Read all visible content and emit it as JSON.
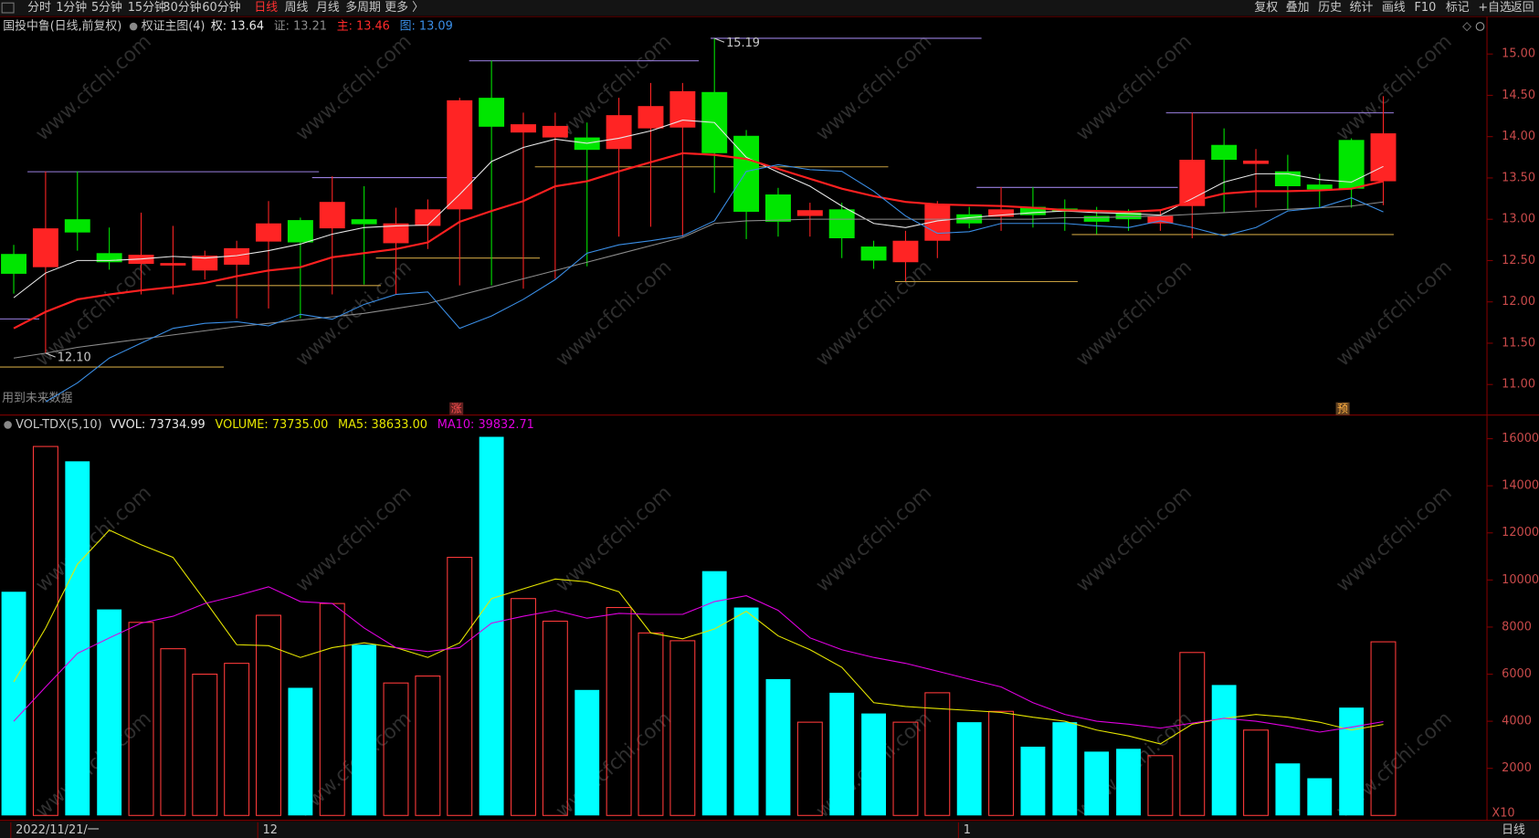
{
  "toolbar": {
    "left": [
      "分时",
      "1分钟",
      "5分钟",
      "15分钟",
      "30分钟",
      "60分钟",
      "日线",
      "周线",
      "月线",
      "多周期",
      "更多 〉"
    ],
    "right": [
      "复权",
      "叠加",
      "历史",
      "统计",
      "画线",
      "F10",
      "标记",
      "+自选",
      "返回"
    ]
  },
  "watermark": "www.cfchi.com",
  "status": {
    "future_data": "用到未来数据",
    "marker_rise": "涨",
    "marker_pre": "预",
    "period": "日线"
  },
  "chart_data": [
    {
      "type": "candlestick",
      "title": "国投中鲁(日线,前复权)",
      "indicator": "权证主图(4)",
      "header": [
        {
          "text": "权: 13.64",
          "color": "#e8e8e8"
        },
        {
          "text": "证: 13.21",
          "color": "#8c8c8c"
        },
        {
          "text": "主: 13.46",
          "color": "#ff2a2a"
        },
        {
          "text": "图: 13.09",
          "color": "#3a8ee6"
        }
      ],
      "categories": [
        "2022/11/21/一",
        null,
        null,
        null,
        null,
        null,
        null,
        null,
        "12",
        null,
        null,
        null,
        null,
        null,
        null,
        null,
        null,
        null,
        null,
        null,
        null,
        null,
        null,
        null,
        null,
        null,
        null,
        null,
        null,
        null,
        "1",
        null,
        null,
        null,
        null,
        null,
        null,
        null,
        null,
        null,
        null,
        null,
        null,
        null
      ],
      "open": [
        12.58,
        12.42,
        13.0,
        12.59,
        12.46,
        12.44,
        12.38,
        12.45,
        12.73,
        12.99,
        12.89,
        13.0,
        12.71,
        12.92,
        13.12,
        14.47,
        14.05,
        13.99,
        13.99,
        13.85,
        14.1,
        14.11,
        14.54,
        14.01,
        13.3,
        13.04,
        13.12,
        12.67,
        12.48,
        12.74,
        13.06,
        13.03,
        13.15,
        13.13,
        13.04,
        13.08,
        12.95,
        13.16,
        13.9,
        13.67,
        13.58,
        13.42,
        13.96,
        13.46
      ],
      "high": [
        12.69,
        13.58,
        13.58,
        12.9,
        13.08,
        12.92,
        12.62,
        12.74,
        13.22,
        13.02,
        13.52,
        13.4,
        13.14,
        13.24,
        14.47,
        14.92,
        14.29,
        14.29,
        14.17,
        14.47,
        14.65,
        14.65,
        15.19,
        14.08,
        13.38,
        13.2,
        13.2,
        12.74,
        12.86,
        13.22,
        13.15,
        13.39,
        13.39,
        13.24,
        13.15,
        13.12,
        13.12,
        14.29,
        14.1,
        13.85,
        13.78,
        13.55,
        13.98,
        14.49
      ],
      "low": [
        12.1,
        11.38,
        12.62,
        12.39,
        12.09,
        12.09,
        12.27,
        11.8,
        11.92,
        11.8,
        12.09,
        12.21,
        12.09,
        12.64,
        12.2,
        12.2,
        12.16,
        12.28,
        12.43,
        12.79,
        12.91,
        12.79,
        13.32,
        12.76,
        12.79,
        12.79,
        12.53,
        12.4,
        12.25,
        12.53,
        12.89,
        12.86,
        12.9,
        12.86,
        12.82,
        12.86,
        12.86,
        12.77,
        13.08,
        13.14,
        13.11,
        13.14,
        13.14,
        13.17
      ],
      "close": [
        12.34,
        12.89,
        12.84,
        12.48,
        12.57,
        12.47,
        12.56,
        12.65,
        12.95,
        12.72,
        13.21,
        12.94,
        12.95,
        13.12,
        14.44,
        14.12,
        14.15,
        14.13,
        13.84,
        14.26,
        14.37,
        14.55,
        13.8,
        13.09,
        12.97,
        13.11,
        12.77,
        12.5,
        12.74,
        13.18,
        12.95,
        13.12,
        13.05,
        13.09,
        12.97,
        13.0,
        13.04,
        13.72,
        13.72,
        13.71,
        13.4,
        13.36,
        13.37,
        14.04
      ],
      "up_color": "#ff2424",
      "down_color": "#00e600",
      "annotations": [
        {
          "text": "15.19",
          "at": "high"
        },
        {
          "text": "12.10",
          "at": "low"
        }
      ],
      "series": [
        {
          "color": "#e8e8e8",
          "values": [
            12.05,
            12.35,
            12.5,
            12.5,
            12.52,
            12.55,
            12.53,
            12.56,
            12.62,
            12.7,
            12.82,
            12.9,
            12.92,
            12.93,
            13.3,
            13.7,
            13.87,
            13.97,
            13.92,
            13.98,
            14.07,
            14.2,
            14.17,
            13.75,
            13.57,
            13.4,
            13.16,
            12.95,
            12.9,
            12.98,
            13.02,
            13.05,
            13.08,
            13.1,
            13.08,
            13.07,
            13.05,
            13.25,
            13.45,
            13.55,
            13.55,
            13.48,
            13.45,
            13.64
          ]
        },
        {
          "color": "#8c8c8c",
          "values": [
            11.32,
            11.38,
            11.45,
            11.5,
            11.55,
            11.6,
            11.65,
            11.7,
            11.74,
            11.78,
            11.82,
            11.86,
            11.92,
            11.98,
            12.08,
            12.18,
            12.28,
            12.38,
            12.48,
            12.58,
            12.68,
            12.78,
            12.95,
            12.98,
            12.99,
            13.0,
            13.0,
            13.0,
            13.0,
            13.0,
            13.0,
            13.0,
            13.0,
            13.02,
            13.02,
            13.03,
            13.04,
            13.06,
            13.08,
            13.1,
            13.12,
            13.14,
            13.16,
            13.21
          ]
        },
        {
          "color": "#ff2020",
          "values": [
            11.68,
            11.88,
            12.03,
            12.09,
            12.14,
            12.18,
            12.23,
            12.31,
            12.38,
            12.42,
            12.54,
            12.59,
            12.64,
            12.72,
            12.97,
            13.1,
            13.22,
            13.4,
            13.46,
            13.58,
            13.69,
            13.8,
            13.78,
            13.73,
            13.61,
            13.49,
            13.37,
            13.28,
            13.21,
            13.18,
            13.17,
            13.16,
            13.14,
            13.11,
            13.1,
            13.09,
            13.11,
            13.22,
            13.31,
            13.34,
            13.34,
            13.35,
            13.37,
            13.46
          ]
        },
        {
          "color": "#3a8ee6",
          "values": [
            null,
            10.79,
            11.02,
            11.32,
            11.5,
            11.68,
            11.74,
            11.76,
            11.71,
            11.85,
            11.79,
            11.97,
            12.09,
            12.12,
            11.68,
            11.83,
            12.03,
            12.27,
            12.59,
            12.69,
            12.74,
            12.8,
            12.98,
            13.58,
            13.66,
            13.6,
            13.58,
            13.34,
            13.04,
            12.83,
            12.85,
            12.95,
            12.95,
            12.95,
            12.92,
            12.9,
            12.98,
            12.9,
            12.8,
            12.9,
            13.1,
            13.14,
            13.26,
            13.09
          ]
        }
      ],
      "ylim": [
        10.63,
        15.44
      ],
      "yticks": [
        {
          "value": 11,
          "label": "11.00"
        },
        {
          "value": 11.5,
          "label": "11.50"
        },
        {
          "value": 12,
          "label": "12.00"
        },
        {
          "value": 12.5,
          "label": "12.50"
        },
        {
          "value": 13,
          "label": "13.00"
        },
        {
          "value": 13.5,
          "label": "13.50"
        },
        {
          "value": 14,
          "label": "14.00"
        },
        {
          "value": 14.5,
          "label": "14.50"
        },
        {
          "value": 15,
          "label": "15.00"
        }
      ]
    },
    {
      "type": "bar",
      "title": "VOL-TDX(5,10)",
      "header": [
        {
          "text": "VVOL: 73734.99",
          "color": "#e8e8e8"
        },
        {
          "text": "VOLUME: 73735.00",
          "color": "#e6e600"
        },
        {
          "text": "MA5: 38633.00",
          "color": "#e6e600"
        },
        {
          "text": "MA10: 39832.71",
          "color": "#e000e0"
        }
      ],
      "values": [
        9500,
        15670,
        15040,
        8750,
        8200,
        7080,
        6000,
        6460,
        8500,
        5420,
        9000,
        7250,
        5625,
        5920,
        10960,
        16080,
        9210,
        8250,
        5330,
        8830,
        7750,
        7420,
        10375,
        8830,
        5790,
        3960,
        5210,
        4330,
        3960,
        5210,
        3960,
        4420,
        2920,
        3960,
        2710,
        2830,
        2540,
        6920,
        5540,
        3625,
        2210,
        1580,
        4580,
        7373.5
      ],
      "up_color": "#ff3a3a",
      "down_color": "#00ffff",
      "series": [
        {
          "color": "#e6e600",
          "values": [
            5670,
            7960,
            10670,
            12120,
            11500,
            10960,
            9125,
            7250,
            7210,
            6710,
            7125,
            7330,
            7125,
            6710,
            7330,
            9210,
            9625,
            10040,
            9920,
            9500,
            7750,
            7500,
            7920,
            8670,
            7625,
            7040,
            6290,
            4790,
            4625,
            4540,
            4460,
            4375,
            4170,
            4000,
            3625,
            3375,
            3040,
            3875,
            4125,
            4290,
            4170,
            3960,
            3625,
            3863.3
          ]
        },
        {
          "color": "#e000e0",
          "values": [
            4000,
            5460,
            6880,
            7540,
            8170,
            8460,
            9000,
            9330,
            9710,
            9080,
            9000,
            7960,
            7125,
            6960,
            7125,
            8170,
            8460,
            8710,
            8375,
            8580,
            8540,
            8540,
            9080,
            9330,
            8710,
            7540,
            7040,
            6710,
            6460,
            6125,
            5790,
            5460,
            4790,
            4290,
            4000,
            3875,
            3710,
            3920,
            4125,
            4000,
            3790,
            3540,
            3750,
            3983.27
          ]
        }
      ],
      "unit": "X10",
      "ylim": [
        0,
        16920
      ],
      "yticks": [
        2000,
        4000,
        6000,
        8000,
        10000,
        12000,
        14000,
        16000
      ]
    }
  ]
}
